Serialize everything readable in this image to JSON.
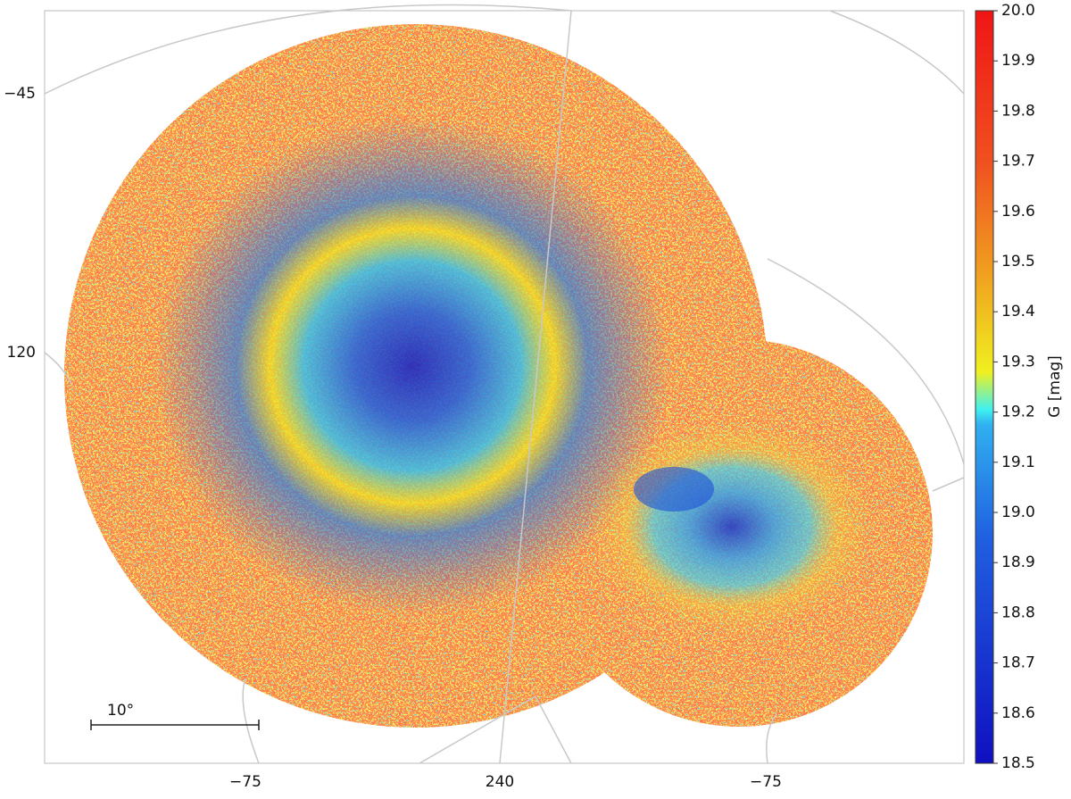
{
  "chart_data": {
    "type": "sky-map",
    "left_labels": [
      "−45",
      "120"
    ],
    "bottom_labels": [
      "−75",
      "240",
      "−75"
    ],
    "scale_bar_label": "10°",
    "colorbar": {
      "label": "G [mag]",
      "ylim": [
        18.5,
        20.0
      ],
      "yticks": [
        18.5,
        18.6,
        18.7,
        18.8,
        18.9,
        {
          "value": 19.0,
          "label": "19.0"
        },
        19.1,
        19.2,
        19.3,
        19.4,
        19.5,
        19.6,
        19.7,
        19.8,
        19.9,
        {
          "value": 20.0,
          "label": "20.0"
        }
      ]
    }
  }
}
